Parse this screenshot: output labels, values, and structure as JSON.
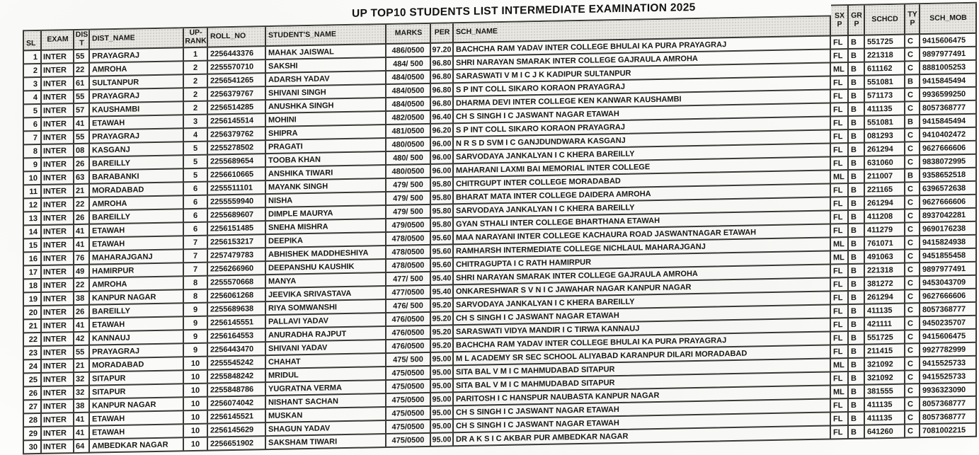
{
  "title": "UP TOP10 STUDENTS LIST INTERMEDIATE EXAMINATION 2025",
  "table": {
    "headers": {
      "sl": "SL",
      "exam": "EXAM",
      "dist_l1": "DIS",
      "dist_l2": "T",
      "dist_name": "DIST_NAME",
      "up_rank_l1": "UP-",
      "up_rank_l2": "RANK",
      "roll_no": "ROLL_NO",
      "student_name": "STUDENT'S_NAME",
      "marks": "MARKS",
      "per": "PER",
      "sch_name": "SCH_NAME",
      "sx_l1": "SX",
      "sx_l2": "P",
      "gr_l1": "GR",
      "gr_l2": "P",
      "schcd": "SCHCD",
      "ty_l1": "TY",
      "ty_l2": "P",
      "sch_mob": "SCH_MOB"
    },
    "rows": [
      {
        "sl": "1",
        "exam": "INTER",
        "dist": "55",
        "dist_name": "PRAYAGRAJ",
        "up_rank": "1",
        "roll_no": "2256443376",
        "student_name": "MAHAK JAISWAL",
        "marks": "486/0500",
        "per": "97.20",
        "sch_name": "BACHCHA RAM YADAV INTER COLLEGE BHULAI KA PURA PRAYAGRAJ",
        "sx": "FL",
        "gr": "B",
        "schcd": "551725",
        "ty": "C",
        "sch_mob": "9415606475"
      },
      {
        "sl": "2",
        "exam": "INTER",
        "dist": "22",
        "dist_name": "AMROHA",
        "up_rank": "2",
        "roll_no": "2255570710",
        "student_name": "SAKSHI",
        "marks": "484/ 500",
        "per": "96.80",
        "sch_name": "SHRI NARAYAN SMARAK INTER COLLEGE GAJRAULA AMROHA",
        "sx": "FL",
        "gr": "B",
        "schcd": "221318",
        "ty": "C",
        "sch_mob": "9897977491"
      },
      {
        "sl": "3",
        "exam": "INTER",
        "dist": "61",
        "dist_name": "SULTANPUR",
        "up_rank": "2",
        "roll_no": "2256541265",
        "student_name": "ADARSH YADAV",
        "marks": "484/0500",
        "per": "96.80",
        "sch_name": "SARASWATI V M I C J K KADIPUR SULTANPUR",
        "sx": "ML",
        "gr": "B",
        "schcd": "611162",
        "ty": "C",
        "sch_mob": "8881005253"
      },
      {
        "sl": "4",
        "exam": "INTER",
        "dist": "55",
        "dist_name": "PRAYAGRAJ",
        "up_rank": "2",
        "roll_no": "2256379767",
        "student_name": "SHIVANI SINGH",
        "marks": "484/0500",
        "per": "96.80",
        "sch_name": "S P INT COLL SIKARO KORAON PRAYAGRAJ",
        "sx": "FL",
        "gr": "B",
        "schcd": "551081",
        "ty": "B",
        "sch_mob": "9415845494"
      },
      {
        "sl": "5",
        "exam": "INTER",
        "dist": "57",
        "dist_name": "KAUSHAMBI",
        "up_rank": "2",
        "roll_no": "2256514285",
        "student_name": "ANUSHKA SINGH",
        "marks": "484/0500",
        "per": "96.80",
        "sch_name": "DHARMA DEVI INTER COLLEGE KEN KANWAR KAUSHAMBI",
        "sx": "FL",
        "gr": "B",
        "schcd": "571173",
        "ty": "C",
        "sch_mob": "9936599250"
      },
      {
        "sl": "6",
        "exam": "INTER",
        "dist": "41",
        "dist_name": "ETAWAH",
        "up_rank": "3",
        "roll_no": "2256145514",
        "student_name": "MOHINI",
        "marks": "482/0500",
        "per": "96.40",
        "sch_name": "CH S SINGH I C JASWANT NAGAR ETAWAH",
        "sx": "FL",
        "gr": "B",
        "schcd": "411135",
        "ty": "C",
        "sch_mob": "8057368777"
      },
      {
        "sl": "7",
        "exam": "INTER",
        "dist": "55",
        "dist_name": "PRAYAGRAJ",
        "up_rank": "4",
        "roll_no": "2256379762",
        "student_name": "SHIPRA",
        "marks": "481/0500",
        "per": "96.20",
        "sch_name": "S P INT COLL SIKARO KORAON PRAYAGRAJ",
        "sx": "FL",
        "gr": "B",
        "schcd": "551081",
        "ty": "B",
        "sch_mob": "9415845494"
      },
      {
        "sl": "8",
        "exam": "INTER",
        "dist": "08",
        "dist_name": "KASGANJ",
        "up_rank": "5",
        "roll_no": "2255278502",
        "student_name": "PRAGATI",
        "marks": "480/0500",
        "per": "96.00",
        "sch_name": "N R S D SVM I C GANJDUNDWARA KASGANJ",
        "sx": "FL",
        "gr": "B",
        "schcd": "081293",
        "ty": "C",
        "sch_mob": "9410402472"
      },
      {
        "sl": "9",
        "exam": "INTER",
        "dist": "26",
        "dist_name": "BAREILLY",
        "up_rank": "5",
        "roll_no": "2255689654",
        "student_name": "TOOBA KHAN",
        "marks": "480/ 500",
        "per": "96.00",
        "sch_name": "SARVODAYA JANKALYAN I C KHERA BAREILLY",
        "sx": "FL",
        "gr": "B",
        "schcd": "261294",
        "ty": "C",
        "sch_mob": "9627666606"
      },
      {
        "sl": "10",
        "exam": "INTER",
        "dist": "63",
        "dist_name": "BARABANKI",
        "up_rank": "5",
        "roll_no": "2256610665",
        "student_name": "ANSHIKA TIWARI",
        "marks": "480/0500",
        "per": "96.00",
        "sch_name": "MAHARANI LAXMI BAI MEMORIAL INTER COLLEGE",
        "sx": "FL",
        "gr": "B",
        "schcd": "631060",
        "ty": "C",
        "sch_mob": "9838072995"
      },
      {
        "sl": "11",
        "exam": "INTER",
        "dist": "21",
        "dist_name": "MORADABAD",
        "up_rank": "6",
        "roll_no": "2255511101",
        "student_name": "MAYANK SINGH",
        "marks": "479/ 500",
        "per": "95.80",
        "sch_name": "CHITRGUPT INTER COLLEGE MORADABAD",
        "sx": "ML",
        "gr": "B",
        "schcd": "211007",
        "ty": "B",
        "sch_mob": "9358652518"
      },
      {
        "sl": "12",
        "exam": "INTER",
        "dist": "22",
        "dist_name": "AMROHA",
        "up_rank": "6",
        "roll_no": "2255559940",
        "student_name": "NISHA",
        "marks": "479/ 500",
        "per": "95.80",
        "sch_name": "BHARAT MATA INTER COLLEGE DAIDERA AMROHA",
        "sx": "FL",
        "gr": "B",
        "schcd": "221165",
        "ty": "C",
        "sch_mob": "6396572638"
      },
      {
        "sl": "13",
        "exam": "INTER",
        "dist": "26",
        "dist_name": "BAREILLY",
        "up_rank": "6",
        "roll_no": "2255689607",
        "student_name": "DIMPLE MAURYA",
        "marks": "479/ 500",
        "per": "95.80",
        "sch_name": "SARVODAYA JANKALYAN I C KHERA BAREILLY",
        "sx": "FL",
        "gr": "B",
        "schcd": "261294",
        "ty": "C",
        "sch_mob": "9627666606"
      },
      {
        "sl": "14",
        "exam": "INTER",
        "dist": "41",
        "dist_name": "ETAWAH",
        "up_rank": "6",
        "roll_no": "2256151485",
        "student_name": "SNEHA MISHRA",
        "marks": "479/0500",
        "per": "95.80",
        "sch_name": "GYAN STHALI INTER COLLEGE BHARTHANA ETAWAH",
        "sx": "FL",
        "gr": "B",
        "schcd": "411208",
        "ty": "C",
        "sch_mob": "8937042281"
      },
      {
        "sl": "15",
        "exam": "INTER",
        "dist": "41",
        "dist_name": "ETAWAH",
        "up_rank": "7",
        "roll_no": "2256153217",
        "student_name": "DEEPIKA",
        "marks": "478/0500",
        "per": "95.60",
        "sch_name": "MAA NARAYANI INTER COLLEGE KACHAURA ROAD JASWANTNAGAR ETAWAH",
        "sx": "FL",
        "gr": "B",
        "schcd": "411279",
        "ty": "C",
        "sch_mob": "9690176238"
      },
      {
        "sl": "16",
        "exam": "INTER",
        "dist": "76",
        "dist_name": "MAHARAJGANJ",
        "up_rank": "7",
        "roll_no": "2257479783",
        "student_name": "ABHISHEK MADDHESHIYA",
        "marks": "478/0500",
        "per": "95.60",
        "sch_name": "RAMHARSH INTERMEDIATE COLLEGE NICHLAUL MAHARAJGANJ",
        "sx": "ML",
        "gr": "B",
        "schcd": "761071",
        "ty": "C",
        "sch_mob": "9415824938"
      },
      {
        "sl": "17",
        "exam": "INTER",
        "dist": "49",
        "dist_name": "HAMIRPUR",
        "up_rank": "7",
        "roll_no": "2256266960",
        "student_name": "DEEPANSHU KAUSHIK",
        "marks": "478/0500",
        "per": "95.60",
        "sch_name": "CHITRAGUPTA I C RATH HAMIRPUR",
        "sx": "ML",
        "gr": "B",
        "schcd": "491063",
        "ty": "C",
        "sch_mob": "9451855458"
      },
      {
        "sl": "18",
        "exam": "INTER",
        "dist": "22",
        "dist_name": "AMROHA",
        "up_rank": "8",
        "roll_no": "2255570668",
        "student_name": "MANYA",
        "marks": "477/ 500",
        "per": "95.40",
        "sch_name": "SHRI NARAYAN SMARAK INTER COLLEGE GAJRAULA AMROHA",
        "sx": "FL",
        "gr": "B",
        "schcd": "221318",
        "ty": "C",
        "sch_mob": "9897977491"
      },
      {
        "sl": "19",
        "exam": "INTER",
        "dist": "38",
        "dist_name": "KANPUR NAGAR",
        "up_rank": "8",
        "roll_no": "2256061268",
        "student_name": "JEEVIKA SRIVASTAVA",
        "marks": "477/0500",
        "per": "95.40",
        "sch_name": "ONKARESHWAR S V N I C JAWAHAR NAGAR KANPUR NAGAR",
        "sx": "FL",
        "gr": "B",
        "schcd": "381272",
        "ty": "C",
        "sch_mob": "9453043709"
      },
      {
        "sl": "20",
        "exam": "INTER",
        "dist": "26",
        "dist_name": "BAREILLY",
        "up_rank": "9",
        "roll_no": "2255689638",
        "student_name": "RIYA SOMWANSHI",
        "marks": "476/ 500",
        "per": "95.20",
        "sch_name": "SARVODAYA JANKALYAN I C KHERA BAREILLY",
        "sx": "FL",
        "gr": "B",
        "schcd": "261294",
        "ty": "C",
        "sch_mob": "9627666606"
      },
      {
        "sl": "21",
        "exam": "INTER",
        "dist": "41",
        "dist_name": "ETAWAH",
        "up_rank": "9",
        "roll_no": "2256145551",
        "student_name": "PALLAVI YADAV",
        "marks": "476/0500",
        "per": "95.20",
        "sch_name": "CH S SINGH I C JASWANT NAGAR ETAWAH",
        "sx": "FL",
        "gr": "B",
        "schcd": "411135",
        "ty": "C",
        "sch_mob": "8057368777"
      },
      {
        "sl": "22",
        "exam": "INTER",
        "dist": "42",
        "dist_name": "KANNAUJ",
        "up_rank": "9",
        "roll_no": "2256164553",
        "student_name": "ANURADHA RAJPUT",
        "marks": "476/0500",
        "per": "95.20",
        "sch_name": "SARASWATI VIDYA MANDIR I C TIRWA KANNAUJ",
        "sx": "FL",
        "gr": "B",
        "schcd": "421111",
        "ty": "C",
        "sch_mob": "9450235707"
      },
      {
        "sl": "23",
        "exam": "INTER",
        "dist": "55",
        "dist_name": "PRAYAGRAJ",
        "up_rank": "9",
        "roll_no": "2256443470",
        "student_name": "SHIVANI YADAV",
        "marks": "476/0500",
        "per": "95.20",
        "sch_name": "BACHCHA RAM YADAV INTER COLLEGE BHULAI KA PURA PRAYAGRAJ",
        "sx": "FL",
        "gr": "B",
        "schcd": "551725",
        "ty": "C",
        "sch_mob": "9415606475"
      },
      {
        "sl": "24",
        "exam": "INTER",
        "dist": "21",
        "dist_name": "MORADABAD",
        "up_rank": "10",
        "roll_no": "2255545242",
        "student_name": "CHAHAT",
        "marks": "475/ 500",
        "per": "95.00",
        "sch_name": "M L ACADEMY SR SEC SCHOOL ALIYABAD KARANPUR DILARI MORADABAD",
        "sx": "FL",
        "gr": "B",
        "schcd": "211415",
        "ty": "C",
        "sch_mob": "9927782999"
      },
      {
        "sl": "25",
        "exam": "INTER",
        "dist": "32",
        "dist_name": "SITAPUR",
        "up_rank": "10",
        "roll_no": "2255848242",
        "student_name": "MRIDUL",
        "marks": "475/0500",
        "per": "95.00",
        "sch_name": "SITA BAL V M I C MAHMUDABAD SITAPUR",
        "sx": "ML",
        "gr": "B",
        "schcd": "321092",
        "ty": "C",
        "sch_mob": "9415525733"
      },
      {
        "sl": "26",
        "exam": "INTER",
        "dist": "32",
        "dist_name": "SITAPUR",
        "up_rank": "10",
        "roll_no": "2255848786",
        "student_name": "YUGRATNA VERMA",
        "marks": "475/0500",
        "per": "95.00",
        "sch_name": "SITA BAL V M I C MAHMUDABAD SITAPUR",
        "sx": "FL",
        "gr": "B",
        "schcd": "321092",
        "ty": "C",
        "sch_mob": "9415525733"
      },
      {
        "sl": "27",
        "exam": "INTER",
        "dist": "38",
        "dist_name": "KANPUR NAGAR",
        "up_rank": "10",
        "roll_no": "2256074042",
        "student_name": "NISHANT SACHAN",
        "marks": "475/0500",
        "per": "95.00",
        "sch_name": "PARITOSH I C HANSPUR NAUBASTA KANPUR NAGAR",
        "sx": "ML",
        "gr": "B",
        "schcd": "381555",
        "ty": "C",
        "sch_mob": "9936323090"
      },
      {
        "sl": "28",
        "exam": "INTER",
        "dist": "41",
        "dist_name": "ETAWAH",
        "up_rank": "10",
        "roll_no": "2256145521",
        "student_name": "MUSKAN",
        "marks": "475/0500",
        "per": "95.00",
        "sch_name": "CH S SINGH I C JASWANT NAGAR ETAWAH",
        "sx": "FL",
        "gr": "B",
        "schcd": "411135",
        "ty": "C",
        "sch_mob": "8057368777"
      },
      {
        "sl": "29",
        "exam": "INTER",
        "dist": "41",
        "dist_name": "ETAWAH",
        "up_rank": "10",
        "roll_no": "2256145629",
        "student_name": "SHAGUN YADAV",
        "marks": "475/0500",
        "per": "95.00",
        "sch_name": "CH S SINGH I C JASWANT NAGAR ETAWAH",
        "sx": "FL",
        "gr": "B",
        "schcd": "411135",
        "ty": "C",
        "sch_mob": "8057368777"
      },
      {
        "sl": "30",
        "exam": "INTER",
        "dist": "64",
        "dist_name": "AMBEDKAR NAGAR",
        "up_rank": "10",
        "roll_no": "2256651902",
        "student_name": "SAKSHAM TIWARI",
        "marks": "475/0500",
        "per": "95.00",
        "sch_name": "DR A K S I C AKBAR PUR AMBEDKAR NAGAR",
        "sx": "FL",
        "gr": "B",
        "schcd": "641260",
        "ty": "C",
        "sch_mob": "7081002215"
      }
    ]
  }
}
